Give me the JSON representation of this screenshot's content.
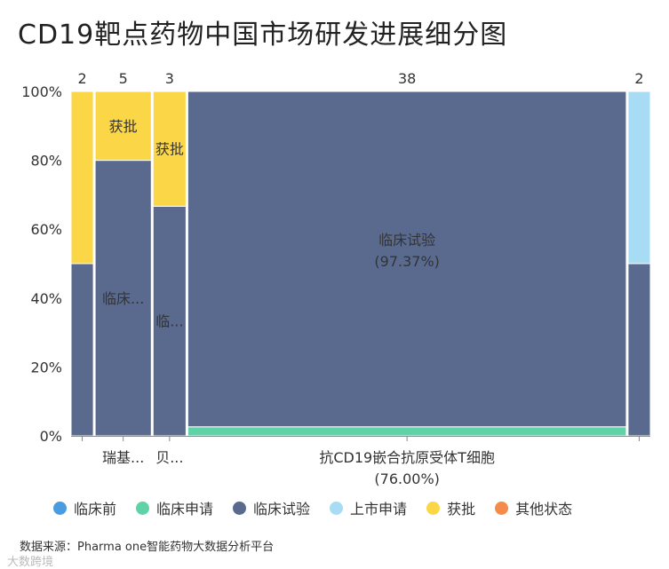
{
  "chart_data": {
    "type": "mekko",
    "title": "CD19靶点药物中国市场研发进展细分图",
    "y_ticks": [
      "0%",
      "20%",
      "40%",
      "60%",
      "80%",
      "100%"
    ],
    "ylim": [
      0,
      100
    ],
    "columns": [
      {
        "label": "",
        "count": 2,
        "count_label": "2",
        "segments": [
          {
            "status": "临床试验",
            "value": 50
          },
          {
            "status": "获批",
            "value": 50
          }
        ]
      },
      {
        "label": "瑞基...",
        "count": 5,
        "count_label": "5",
        "segments": [
          {
            "status": "临床试验",
            "value": 80,
            "text": "临床..."
          },
          {
            "status": "获批",
            "value": 20,
            "text": "获批"
          }
        ]
      },
      {
        "label": "贝...",
        "count": 3,
        "count_label": "3",
        "segments": [
          {
            "status": "临床试验",
            "value": 66.67,
            "text": "临..."
          },
          {
            "status": "获批",
            "value": 33.33,
            "text": "获批"
          }
        ]
      },
      {
        "label": "抗CD19嵌合抗原受体T细胞",
        "sublabel": "(76.00%)",
        "count": 38,
        "count_label": "38",
        "segments": [
          {
            "status": "临床申请",
            "value": 2.63
          },
          {
            "status": "临床试验",
            "value": 97.37,
            "text": "临床试验",
            "subtext": "(97.37%)"
          }
        ]
      },
      {
        "label": "",
        "count": 2,
        "count_label": "2",
        "segments": [
          {
            "status": "临床试验",
            "value": 50
          },
          {
            "status": "上市申请",
            "value": 50
          }
        ]
      }
    ],
    "legend": [
      {
        "name": "临床前",
        "color": "#4a9ce0"
      },
      {
        "name": "临床申请",
        "color": "#5fd2a8"
      },
      {
        "name": "临床试验",
        "color": "#5a6a8f"
      },
      {
        "name": "上市申请",
        "color": "#a8dcf5"
      },
      {
        "name": "获批",
        "color": "#fbd748"
      },
      {
        "name": "其他状态",
        "color": "#f48b4a"
      }
    ]
  },
  "source": "数据来源：Pharma one智能药物大数据分析平台",
  "watermark": "大数跨境"
}
